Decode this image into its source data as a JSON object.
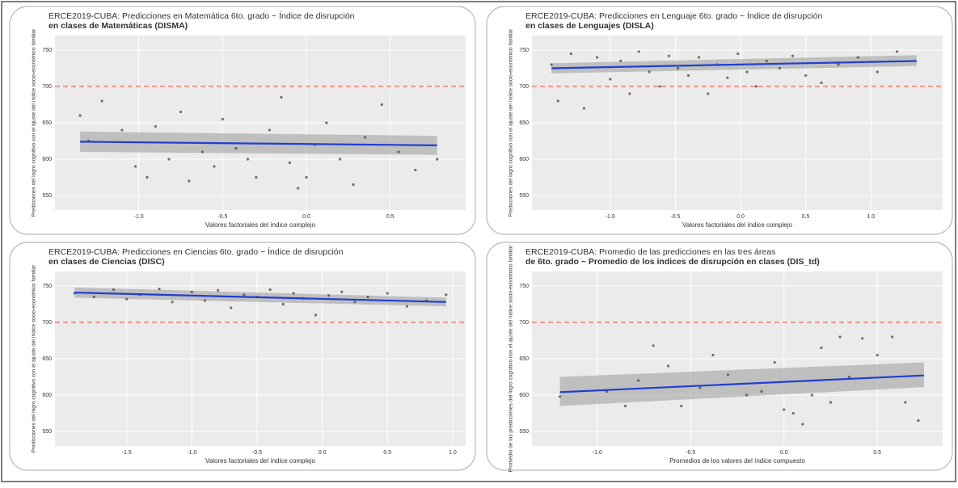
{
  "chart_data": [
    {
      "type": "scatter",
      "title": "ERCE2019-CUBA: Predicciones en Matemática 6to. grado ~ Índice de disrupción",
      "subtitle": "en clases de Matemáticas (DISMA)",
      "xlabel": "Valores factoriales del índice complejo",
      "ylabel": "Predicciones del logro cognitivo con el ajuste del índice socio-económico familiar",
      "xlim": [
        -1.5,
        0.95
      ],
      "ylim": [
        530,
        770
      ],
      "xticks": [
        {
          "value": -1,
          "label": "-1.0"
        },
        -0.5,
        {
          "value": 0,
          "label": "0.0"
        },
        0.5
      ],
      "yticks": [
        550,
        600,
        650,
        700,
        750
      ],
      "reference_line": 700,
      "reference_color": "#f08070",
      "point_color": "#444444",
      "line_color": "#1f3fd0",
      "band_color": "#9a9a9a",
      "points": {
        "x": [
          -1.35,
          -1.3,
          -1.22,
          -1.1,
          -1.02,
          -0.95,
          -0.9,
          -0.82,
          -0.75,
          -0.7,
          -0.62,
          -0.55,
          -0.5,
          -0.42,
          -0.35,
          -0.3,
          -0.22,
          -0.15,
          -0.1,
          -0.05,
          0.0,
          0.05,
          0.12,
          0.2,
          0.28,
          0.35,
          0.45,
          0.55,
          0.65,
          0.78
        ],
        "y": [
          660,
          625,
          680,
          640,
          590,
          575,
          645,
          600,
          665,
          570,
          610,
          590,
          655,
          615,
          600,
          575,
          640,
          685,
          595,
          560,
          575,
          620,
          650,
          600,
          565,
          630,
          675,
          610,
          585,
          600
        ]
      },
      "fit": {
        "x": [
          -1.35,
          0.78
        ],
        "y": [
          624,
          619
        ],
        "lower": [
          610,
          606
        ],
        "upper": [
          638,
          632
        ]
      }
    },
    {
      "type": "scatter",
      "title": "ERCE2019-CUBA: Predicciones en Lenguaje 6to. grado ~ Índice de disrupción",
      "subtitle": "en clases de Lenguajes (DISLA)",
      "xlabel": "Valores factoriales del índice complejo",
      "ylabel": "Predicciones del logro cognitivo con el ajuste del índice socio-económico familiar",
      "xlim": [
        -1.6,
        1.55
      ],
      "ylim": [
        530,
        770
      ],
      "xticks": [
        {
          "value": -1,
          "label": "-1.0"
        },
        -0.5,
        {
          "value": 0,
          "label": "0.0"
        },
        0.5,
        {
          "value": 1,
          "label": "1.0"
        }
      ],
      "yticks": [
        550,
        600,
        650,
        700,
        750
      ],
      "reference_line": 700,
      "reference_color": "#f08070",
      "point_color": "#444444",
      "line_color": "#1f3fd0",
      "band_color": "#9a9a9a",
      "points": {
        "x": [
          -1.45,
          -1.4,
          -1.3,
          -1.2,
          -1.1,
          -1.0,
          -0.92,
          -0.85,
          -0.78,
          -0.7,
          -0.62,
          -0.55,
          -0.48,
          -0.4,
          -0.32,
          -0.25,
          -0.18,
          -0.1,
          -0.02,
          0.05,
          0.12,
          0.2,
          0.3,
          0.4,
          0.5,
          0.62,
          0.75,
          0.9,
          1.05,
          1.2
        ],
        "y": [
          730,
          680,
          745,
          670,
          740,
          710,
          735,
          690,
          748,
          720,
          700,
          742,
          725,
          715,
          740,
          690,
          730,
          712,
          745,
          720,
          700,
          735,
          725,
          742,
          715,
          705,
          730,
          740,
          720,
          748
        ]
      },
      "fit": {
        "x": [
          -1.45,
          1.35
        ],
        "y": [
          725,
          735
        ],
        "lower": [
          718,
          728
        ],
        "upper": [
          732,
          743
        ]
      }
    },
    {
      "type": "scatter",
      "title": "ERCE2019-CUBA: Predicciones en Ciencias 6to. grado ~ Índice de disrupción",
      "subtitle": "en clases de Ciencias (DISC)",
      "xlabel": "Valores factoriales del índice complejo",
      "ylabel": "Predicciones del logro cognitivo con el ajuste del índice socio-económico familiar",
      "xlim": [
        -2.05,
        1.1
      ],
      "ylim": [
        530,
        770
      ],
      "xticks": [
        {
          "value": -1.5,
          "label": "-1.5"
        },
        {
          "value": -1,
          "label": "-1.0"
        },
        -0.5,
        {
          "value": 0,
          "label": "0.0"
        },
        0.5,
        {
          "value": 1,
          "label": "1.0"
        }
      ],
      "yticks": [
        550,
        600,
        650,
        700,
        750
      ],
      "reference_line": 700,
      "reference_color": "#f08070",
      "point_color": "#444444",
      "line_color": "#1f3fd0",
      "band_color": "#9a9a9a",
      "points": {
        "x": [
          -1.9,
          -1.75,
          -1.6,
          -1.5,
          -1.4,
          -1.25,
          -1.15,
          -1.0,
          -0.9,
          -0.8,
          -0.7,
          -0.6,
          -0.5,
          -0.4,
          -0.3,
          -0.22,
          -0.15,
          -0.05,
          0.05,
          0.15,
          0.25,
          0.35,
          0.5,
          0.65,
          0.8,
          0.95
        ],
        "y": [
          740,
          735,
          745,
          732,
          738,
          746,
          728,
          742,
          730,
          744,
          720,
          738,
          735,
          745,
          725,
          740,
          733,
          710,
          737,
          742,
          728,
          735,
          740,
          722,
          730,
          738
        ]
      },
      "fit": {
        "x": [
          -1.9,
          0.95
        ],
        "y": [
          741,
          728
        ],
        "lower": [
          734,
          722
        ],
        "upper": [
          748,
          734
        ]
      }
    },
    {
      "type": "scatter",
      "title": "ERCE2019-CUBA: Promedio de las predicciones en las tres áreas",
      "subtitle": "de 6to. grado ~ Promedio de los índices de disrupción en clases (DIS_td)",
      "xlabel": "Promedios de los valores del índice compuesto",
      "ylabel": "Promedio de las predicciones del logro cognitivo con el ajuste del índice socio-económico familiar",
      "xlim": [
        -1.35,
        0.85
      ],
      "ylim": [
        530,
        770
      ],
      "xticks": [
        {
          "value": -1,
          "label": "-1.0"
        },
        -0.5,
        {
          "value": 0,
          "label": "0.0"
        },
        0.5
      ],
      "yticks": [
        550,
        600,
        650,
        700,
        750
      ],
      "reference_line": 700,
      "reference_color": "#f08070",
      "point_color": "#444444",
      "line_color": "#1f3fd0",
      "band_color": "#9a9a9a",
      "points": {
        "x": [
          -1.2,
          -0.95,
          -0.85,
          -0.78,
          -0.7,
          -0.62,
          -0.55,
          -0.45,
          -0.38,
          -0.3,
          -0.2,
          -0.12,
          -0.05,
          0.0,
          0.05,
          0.1,
          0.15,
          0.2,
          0.25,
          0.3,
          0.35,
          0.42,
          0.5,
          0.58,
          0.65,
          0.72
        ],
        "y": [
          598,
          605,
          585,
          620,
          668,
          640,
          585,
          610,
          655,
          628,
          600,
          605,
          645,
          580,
          575,
          560,
          600,
          665,
          590,
          680,
          625,
          678,
          655,
          680,
          590,
          565
        ]
      },
      "fit": {
        "x": [
          -1.2,
          0.75
        ],
        "y": [
          604,
          627
        ],
        "lower": [
          585,
          611
        ],
        "upper": [
          625,
          645
        ]
      }
    }
  ]
}
